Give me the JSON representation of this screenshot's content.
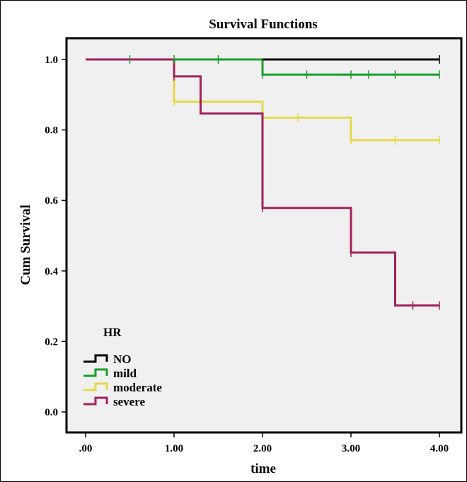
{
  "chart_data": {
    "type": "line",
    "step": true,
    "title": "Survival Functions",
    "xlabel": "time",
    "ylabel": "Cum Survival",
    "xlim": [
      0,
      4
    ],
    "ylim": [
      0,
      1
    ],
    "x_ticks": [
      ".00",
      "1.00",
      "2.00",
      "3.00",
      "4.00"
    ],
    "y_ticks": [
      "0.0",
      "0.2",
      "0.4",
      "0.6",
      "0.8",
      "1.0"
    ],
    "legend": {
      "title": "HR",
      "position": "bottom-left"
    },
    "grid": false,
    "background_color": "#f0f0f0",
    "series": [
      {
        "name": "NO",
        "color": "#000000",
        "steps": [
          [
            2.0,
            1.0
          ],
          [
            4.0,
            1.0
          ]
        ],
        "censored": [
          [
            4.0,
            1.0
          ]
        ]
      },
      {
        "name": "mild",
        "color": "#1a9e2c",
        "steps": [
          [
            1.0,
            1.0
          ],
          [
            2.0,
            1.0
          ],
          [
            2.0,
            0.957
          ],
          [
            4.0,
            0.957
          ]
        ],
        "censored": [
          [
            0.5,
            1.0
          ],
          [
            1.0,
            1.0
          ],
          [
            1.5,
            1.0
          ],
          [
            2.0,
            0.957
          ],
          [
            2.5,
            0.957
          ],
          [
            3.0,
            0.957
          ],
          [
            3.2,
            0.957
          ],
          [
            3.5,
            0.957
          ],
          [
            4.0,
            0.957
          ]
        ]
      },
      {
        "name": "moderate",
        "color": "#e6d84a",
        "steps": [
          [
            1.0,
            1.0
          ],
          [
            1.0,
            0.88
          ],
          [
            2.0,
            0.88
          ],
          [
            2.0,
            0.835
          ],
          [
            3.0,
            0.835
          ],
          [
            3.0,
            0.771
          ],
          [
            4.0,
            0.771
          ]
        ],
        "censored": [
          [
            1.0,
            0.88
          ],
          [
            2.0,
            0.835
          ],
          [
            2.4,
            0.835
          ],
          [
            3.0,
            0.771
          ],
          [
            3.5,
            0.771
          ],
          [
            4.0,
            0.771
          ]
        ]
      },
      {
        "name": "severe",
        "color": "#a3205e",
        "steps": [
          [
            0.0,
            1.0
          ],
          [
            1.0,
            1.0
          ],
          [
            1.0,
            0.952
          ],
          [
            1.3,
            0.952
          ],
          [
            1.3,
            0.847
          ],
          [
            2.0,
            0.847
          ],
          [
            2.0,
            0.579
          ],
          [
            3.0,
            0.579
          ],
          [
            3.0,
            0.452
          ],
          [
            3.5,
            0.452
          ],
          [
            3.5,
            0.302
          ],
          [
            4.0,
            0.302
          ]
        ],
        "censored": [
          [
            1.0,
            0.952
          ],
          [
            2.0,
            0.579
          ],
          [
            3.0,
            0.452
          ],
          [
            3.7,
            0.302
          ],
          [
            4.0,
            0.302
          ]
        ]
      }
    ]
  }
}
